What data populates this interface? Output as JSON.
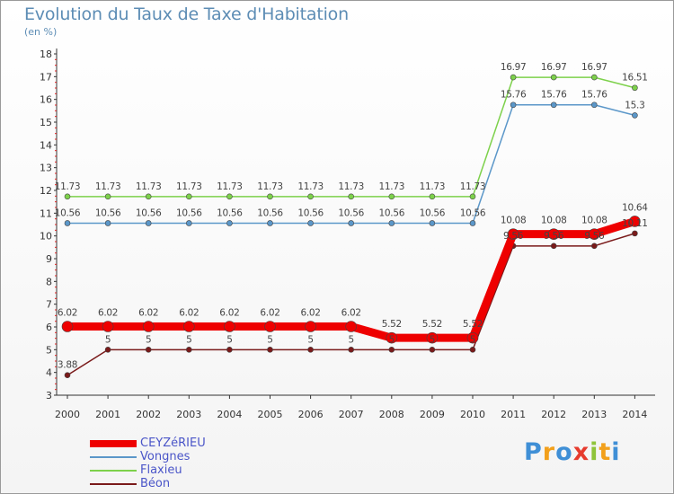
{
  "title": "Evolution du Taux de Taxe d'Habitation",
  "subtitle": "(en %)",
  "logo": {
    "letters": [
      {
        "ch": "P",
        "color": "#3f8fd6"
      },
      {
        "ch": "r",
        "color": "#f2a01c"
      },
      {
        "ch": "o",
        "color": "#3f8fd6"
      },
      {
        "ch": "x",
        "color": "#e63b2e"
      },
      {
        "ch": "i",
        "color": "#8fc43a"
      },
      {
        "ch": "t",
        "color": "#f2a01c"
      },
      {
        "ch": "i",
        "color": "#3f8fd6"
      }
    ]
  },
  "chart_data": {
    "type": "line",
    "x": [
      "2000",
      "2001",
      "2002",
      "2003",
      "2004",
      "2005",
      "2006",
      "2007",
      "2008",
      "2009",
      "2010",
      "2011",
      "2012",
      "2013",
      "2014"
    ],
    "ylim": [
      3,
      18
    ],
    "yticks": [
      "3",
      "4",
      "5",
      "6",
      "7",
      "8",
      "9",
      "10",
      "11",
      "12",
      "13",
      "14",
      "15",
      "16",
      "17",
      "18"
    ],
    "legend_position": "bottom-left",
    "grid": false,
    "series": [
      {
        "name": "Vongnes",
        "color": "#5b97c9",
        "values": [
          10.56,
          10.56,
          10.56,
          10.56,
          10.56,
          10.56,
          10.56,
          10.56,
          10.56,
          10.56,
          10.56,
          15.76,
          15.76,
          15.76,
          15.3
        ],
        "labels": [
          "10.56",
          "10.56",
          "10.56",
          "10.56",
          "10.56",
          "10.56",
          "10.56",
          "10.56",
          "10.56",
          "10.56",
          "10.56",
          "15.76",
          "15.76",
          "15.76",
          "15.3"
        ]
      },
      {
        "name": "Flaxieu",
        "color": "#7dd14b",
        "values": [
          11.73,
          11.73,
          11.73,
          11.73,
          11.73,
          11.73,
          11.73,
          11.73,
          11.73,
          11.73,
          11.73,
          16.97,
          16.97,
          16.97,
          16.51
        ],
        "labels": [
          "11.73",
          "11.73",
          "11.73",
          "11.73",
          "11.73",
          "11.73",
          "11.73",
          "11.73",
          "11.73",
          "11.73",
          "11.73",
          "16.97",
          "16.97",
          "16.97",
          "16.51"
        ]
      },
      {
        "name": "Béon",
        "color": "#7a1a1a",
        "values": [
          3.88,
          5,
          5,
          5,
          5,
          5,
          5,
          5,
          5,
          5,
          5,
          9.56,
          9.56,
          9.56,
          10.11
        ],
        "labels": [
          "3.88",
          "5",
          "5",
          "5",
          "5",
          "5",
          "5",
          "5",
          "5",
          "5",
          "5",
          "9.56",
          "9.56",
          "9.56",
          "10.11"
        ]
      },
      {
        "name": "CEYZéRIEU",
        "color": "#ee0000",
        "values": [
          6.02,
          6.02,
          6.02,
          6.02,
          6.02,
          6.02,
          6.02,
          6.02,
          5.52,
          5.52,
          5.52,
          10.08,
          10.08,
          10.08,
          10.64
        ],
        "labels": [
          "6.02",
          "6.02",
          "6.02",
          "6.02",
          "6.02",
          "6.02",
          "6.02",
          "6.02",
          "5.52",
          "5.52",
          "5.52",
          "10.08",
          "10.08",
          "10.08",
          "10.64"
        ]
      }
    ],
    "legend_order": [
      "CEYZéRIEU",
      "Vongnes",
      "Flaxieu",
      "Béon"
    ]
  }
}
